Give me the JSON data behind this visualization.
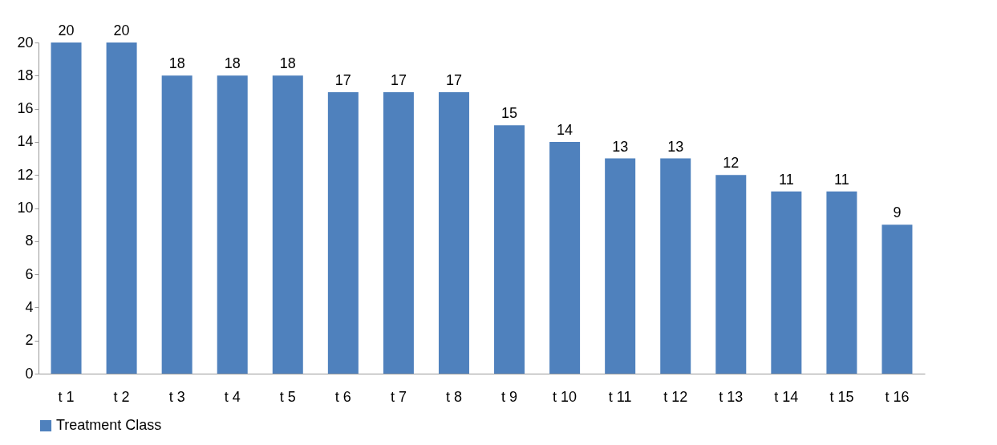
{
  "chart_data": {
    "type": "bar",
    "categories": [
      "t 1",
      "t 2",
      "t 3",
      "t 4",
      "t 5",
      "t 6",
      "t 7",
      "t 8",
      "t 9",
      "t 10",
      "t 11",
      "t 12",
      "t 13",
      "t 14",
      "t 15",
      "t 16"
    ],
    "series": [
      {
        "name": "Treatment Class",
        "color": "#4f81bd",
        "values": [
          20,
          20,
          18,
          18,
          18,
          17,
          17,
          17,
          15,
          14,
          13,
          13,
          12,
          11,
          11,
          9
        ]
      }
    ],
    "ylim": [
      0,
      20
    ],
    "yticks": [
      0,
      2,
      4,
      6,
      8,
      10,
      12,
      14,
      16,
      18,
      20
    ],
    "data_labels": true,
    "grid": false,
    "legend": "bottom"
  }
}
